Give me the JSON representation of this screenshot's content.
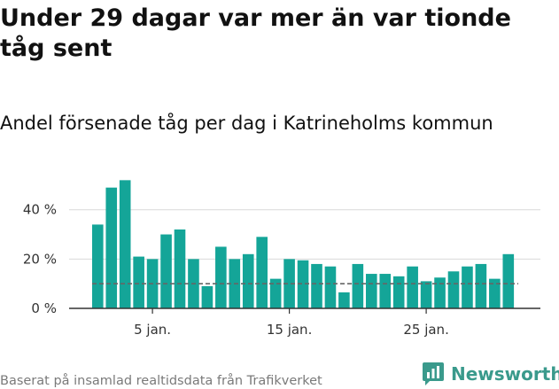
{
  "title": "Under 29 dagar var mer än var tionde tåg sent",
  "subtitle": "Andel försenade tåg per dag i Katrineholms kommun",
  "footer": "Baserat på insamlad realtidsdata från Trafikverket",
  "brand": "Newsworthy",
  "colors": {
    "bar": "#14a598",
    "grid": "#d9d9d9",
    "axis": "#333333",
    "reference": "#666666",
    "brand": "#3a9a8c"
  },
  "chart_data": {
    "type": "bar",
    "x": [
      1,
      2,
      3,
      4,
      5,
      6,
      7,
      8,
      9,
      10,
      11,
      12,
      13,
      14,
      15,
      16,
      17,
      18,
      19,
      20,
      21,
      22,
      23,
      24,
      25,
      26,
      27,
      28,
      29,
      30,
      31
    ],
    "values": [
      34,
      49,
      52,
      21,
      20,
      30,
      32,
      20,
      9,
      25,
      20,
      22,
      29,
      12,
      20,
      19.5,
      18,
      17,
      6.5,
      18,
      14,
      14,
      13,
      17,
      11,
      12.5,
      15,
      17,
      18,
      12,
      22
    ],
    "reference_line": 10,
    "ylim": [
      0,
      55
    ],
    "yticks": [
      0,
      20,
      40
    ],
    "ytick_labels": [
      "0 %",
      "20 %",
      "40 %"
    ],
    "xticks": [
      5,
      15,
      25
    ],
    "xtick_labels": [
      "5 jan.",
      "15 jan.",
      "25 jan."
    ],
    "grid": true
  }
}
